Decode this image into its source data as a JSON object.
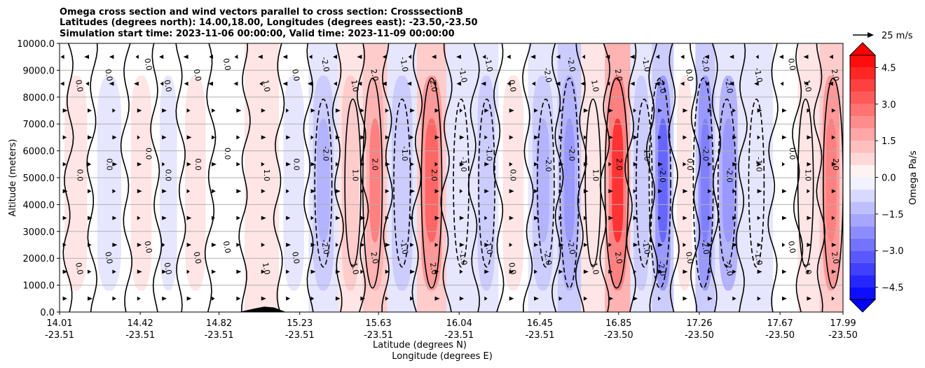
{
  "chart_data": {
    "type": "heatmap",
    "title_lines": [
      "Omega cross section and wind vectors parallel to cross section: CrosssectionB",
      "Latitudes (degrees north): 14.00,18.00, Longitudes (degrees east): -23.50,-23.50",
      "Simulation start time: 2023-11-06 00:00:00, Valid time: 2023-11-09 00:00:00"
    ],
    "ylabel": "Altitude (meters)",
    "xlabel_lines": [
      "Latitude (degrees N)",
      "Longitude (degrees E)"
    ],
    "y_ticks": [
      "0.0",
      "1000.0",
      "2000.0",
      "3000.0",
      "4000.0",
      "5000.0",
      "6000.0",
      "7000.0",
      "8000.0",
      "9000.0",
      "10000.0"
    ],
    "y_values": [
      0,
      1000,
      2000,
      3000,
      4000,
      5000,
      6000,
      7000,
      8000,
      9000,
      10000
    ],
    "ylim": [
      0,
      10000
    ],
    "x_ticks": [
      {
        "lat": "14.01",
        "lon": "-23.51"
      },
      {
        "lat": "14.42",
        "lon": "-23.51"
      },
      {
        "lat": "14.82",
        "lon": "-23.51"
      },
      {
        "lat": "15.23",
        "lon": "-23.51"
      },
      {
        "lat": "15.63",
        "lon": "-23.51"
      },
      {
        "lat": "16.04",
        "lon": "-23.51"
      },
      {
        "lat": "16.45",
        "lon": "-23.51"
      },
      {
        "lat": "16.85",
        "lon": "-23.50"
      },
      {
        "lat": "17.26",
        "lon": "-23.50"
      },
      {
        "lat": "17.67",
        "lon": "-23.50"
      },
      {
        "lat": "17.99",
        "lon": "-23.50"
      }
    ],
    "x_values": [
      14.01,
      14.42,
      14.82,
      15.23,
      15.63,
      16.04,
      16.45,
      16.85,
      17.26,
      17.67,
      17.99
    ],
    "xlim": [
      14.01,
      17.99
    ],
    "grid": true,
    "colorbar": {
      "label": "Omega Pa/s",
      "ticks": [
        "4.5",
        "3.0",
        "1.5",
        "0.0",
        "−1.5",
        "−3.0",
        "−4.5"
      ],
      "tick_values": [
        4.5,
        3.0,
        1.5,
        0.0,
        -1.5,
        -3.0,
        -4.5
      ],
      "range": [
        -5.0,
        5.0
      ],
      "colormap": "bwr",
      "low_color": "#0000ff",
      "mid_color": "#ffffff",
      "high_color": "#ff0000"
    },
    "vector_key": "25 m/s",
    "contour_labels": [
      "0.0",
      "1.0",
      "-1.0",
      "2.0",
      "-2.0",
      "3.0"
    ],
    "omega_bands": [
      {
        "lat": 14.1,
        "value": 0.4
      },
      {
        "lat": 14.25,
        "value": -0.5
      },
      {
        "lat": 14.45,
        "value": 0.4
      },
      {
        "lat": 14.55,
        "value": -0.4
      },
      {
        "lat": 14.7,
        "value": 0.6
      },
      {
        "lat": 14.85,
        "value": 0.3
      },
      {
        "lat": 15.05,
        "value": 0.9
      },
      {
        "lat": 15.2,
        "value": -0.7
      },
      {
        "lat": 15.35,
        "value": -1.6
      },
      {
        "lat": 15.5,
        "value": 1.2
      },
      {
        "lat": 15.6,
        "value": 2.4
      },
      {
        "lat": 15.75,
        "value": -1.4
      },
      {
        "lat": 15.9,
        "value": 2.8
      },
      {
        "lat": 16.05,
        "value": -1.0
      },
      {
        "lat": 16.18,
        "value": -1.3
      },
      {
        "lat": 16.3,
        "value": 0.5
      },
      {
        "lat": 16.48,
        "value": -1.5
      },
      {
        "lat": 16.6,
        "value": -2.2
      },
      {
        "lat": 16.72,
        "value": 1.0
      },
      {
        "lat": 16.84,
        "value": 3.8
      },
      {
        "lat": 16.98,
        "value": -1.2
      },
      {
        "lat": 17.06,
        "value": -3.2
      },
      {
        "lat": 17.2,
        "value": 0.5
      },
      {
        "lat": 17.28,
        "value": -2.6
      },
      {
        "lat": 17.4,
        "value": -1.8
      },
      {
        "lat": 17.55,
        "value": -1.0
      },
      {
        "lat": 17.72,
        "value": 0.3
      },
      {
        "lat": 17.8,
        "value": 1.0
      },
      {
        "lat": 17.94,
        "value": 2.6
      }
    ],
    "terrain": [
      {
        "lat": 14.92,
        "alt": 0
      },
      {
        "lat": 15.0,
        "alt": 130
      },
      {
        "lat": 15.05,
        "alt": 200
      },
      {
        "lat": 15.1,
        "alt": 170
      },
      {
        "lat": 15.16,
        "alt": 0
      }
    ]
  }
}
